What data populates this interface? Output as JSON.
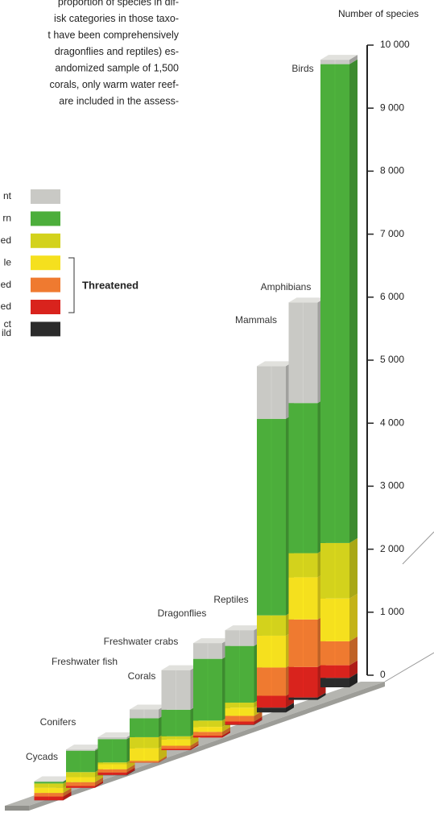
{
  "intro_text": [
    "proportion of species in dif-",
    "isk categories in those taxo-",
    "t have been comprehensively",
    "dragonflies and reptiles) es-",
    "andomized sample of 1,500",
    "corals, only warm water reef-",
    "are included in the assess-"
  ],
  "threatened_label": "Threatened",
  "chart_data": {
    "type": "stacked-bar-3d",
    "y_axis_title": "Number of species",
    "categories": [
      "Cycads",
      "Conifers",
      "Freshwater fish",
      "Corals",
      "Freshwater crabs",
      "Dragonflies",
      "Reptiles",
      "Mammals",
      "Amphibians",
      "Birds"
    ],
    "series": [
      {
        "name": "ct\nild",
        "color": "#2b2b2b",
        "values": [
          2,
          0,
          5,
          0,
          0,
          0,
          5,
          77,
          38,
          150
        ]
      },
      {
        "name": "ed",
        "color": "#d9231d",
        "values": [
          60,
          30,
          40,
          5,
          20,
          30,
          50,
          188,
          484,
          200
        ]
      },
      {
        "name": "ed",
        "color": "#ef7a30",
        "values": [
          57,
          60,
          50,
          25,
          50,
          60,
          90,
          448,
          754,
          380
        ]
      },
      {
        "name": "le",
        "color": "#f5e01e",
        "values": [
          80,
          80,
          80,
          200,
          100,
          80,
          130,
          505,
          670,
          680
        ]
      },
      {
        "name": "ed",
        "color": "#d3d21c",
        "values": [
          70,
          80,
          30,
          175,
          50,
          100,
          80,
          323,
          382,
          880
        ]
      },
      {
        "name": "rn",
        "color": "#4cae3b",
        "values": [
          28,
          340,
          370,
          300,
          422,
          980,
          900,
          3119,
          2383,
          7600
        ]
      },
      {
        "name": "nt",
        "color": "#c9c9c5",
        "values": [
          8,
          20,
          30,
          140,
          628,
          250,
          250,
          836,
          1597,
          70
        ]
      }
    ],
    "ylim": [
      0,
      10000
    ],
    "yticks": [
      0,
      {
        "value": 1000,
        "label": "1 000"
      },
      {
        "value": 2000,
        "label": "2 000"
      },
      {
        "value": 3000,
        "label": "3 000"
      },
      {
        "value": 4000,
        "label": "4 000"
      },
      {
        "value": 5000,
        "label": "5 000"
      },
      {
        "value": 6000,
        "label": "6 000"
      },
      {
        "value": 7000,
        "label": "7 000"
      },
      {
        "value": 8000,
        "label": "8 000"
      },
      {
        "value": 9000,
        "label": "9 000"
      },
      {
        "value": 10000,
        "label": "10 000"
      }
    ]
  }
}
